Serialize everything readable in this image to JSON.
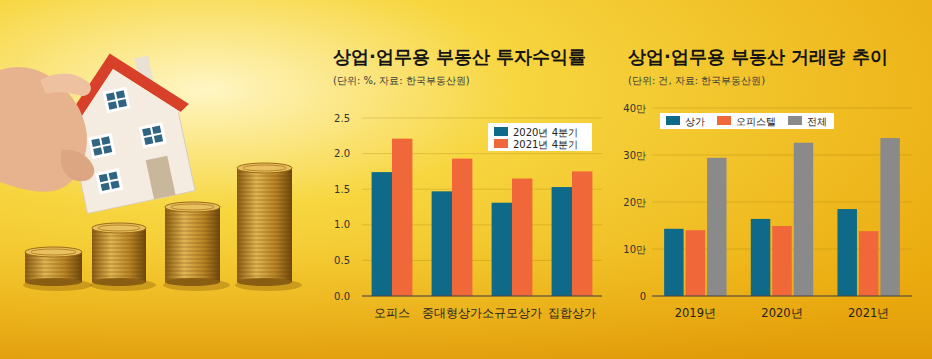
{
  "chart_data": [
    {
      "type": "bar",
      "title": "상업·업무용 부동산 투자수익률",
      "subtitle": "(단위: %, 자료: 한국부동산원)",
      "categories": [
        "오피스",
        "중대형상가",
        "소규모상가",
        "집합상가"
      ],
      "series": [
        {
          "name": "2020년 4분기",
          "color": "#0e6a88",
          "values": [
            1.74,
            1.47,
            1.31,
            1.53
          ]
        },
        {
          "name": "2021년 4분기",
          "color": "#f0683a",
          "values": [
            2.21,
            1.93,
            1.65,
            1.75
          ]
        }
      ],
      "ylim": [
        0,
        2.5
      ],
      "yticks": [
        {
          "value": 0,
          "label": "0.0"
        },
        0.5,
        {
          "value": 1,
          "label": "1.0"
        },
        1.5,
        {
          "value": 2,
          "label": "2.0"
        },
        2.5
      ],
      "grid": true,
      "legend": "upper right"
    },
    {
      "type": "bar",
      "title": "상업·업무용 부동산 거래량 추이",
      "subtitle": "(단위: 건, 자료: 한국부동산원)",
      "categories": [
        "2019년",
        "2020년",
        "2021년"
      ],
      "series": [
        {
          "name": "상가",
          "color": "#0e6a88",
          "values": [
            143000,
            164000,
            185000
          ]
        },
        {
          "name": "오피스텔",
          "color": "#f0683a",
          "values": [
            140000,
            149000,
            138000
          ]
        },
        {
          "name": "전체",
          "color": "#8a8a8a",
          "values": [
            294000,
            326000,
            336000
          ]
        }
      ],
      "ylim": [
        0,
        400000
      ],
      "yticks": [
        0,
        {
          "value": 100000,
          "label": "10만"
        },
        {
          "value": 200000,
          "label": "20만"
        },
        {
          "value": 300000,
          "label": "30만"
        },
        {
          "value": 400000,
          "label": "40만"
        }
      ],
      "grid": true,
      "legend": "upper left"
    }
  ]
}
